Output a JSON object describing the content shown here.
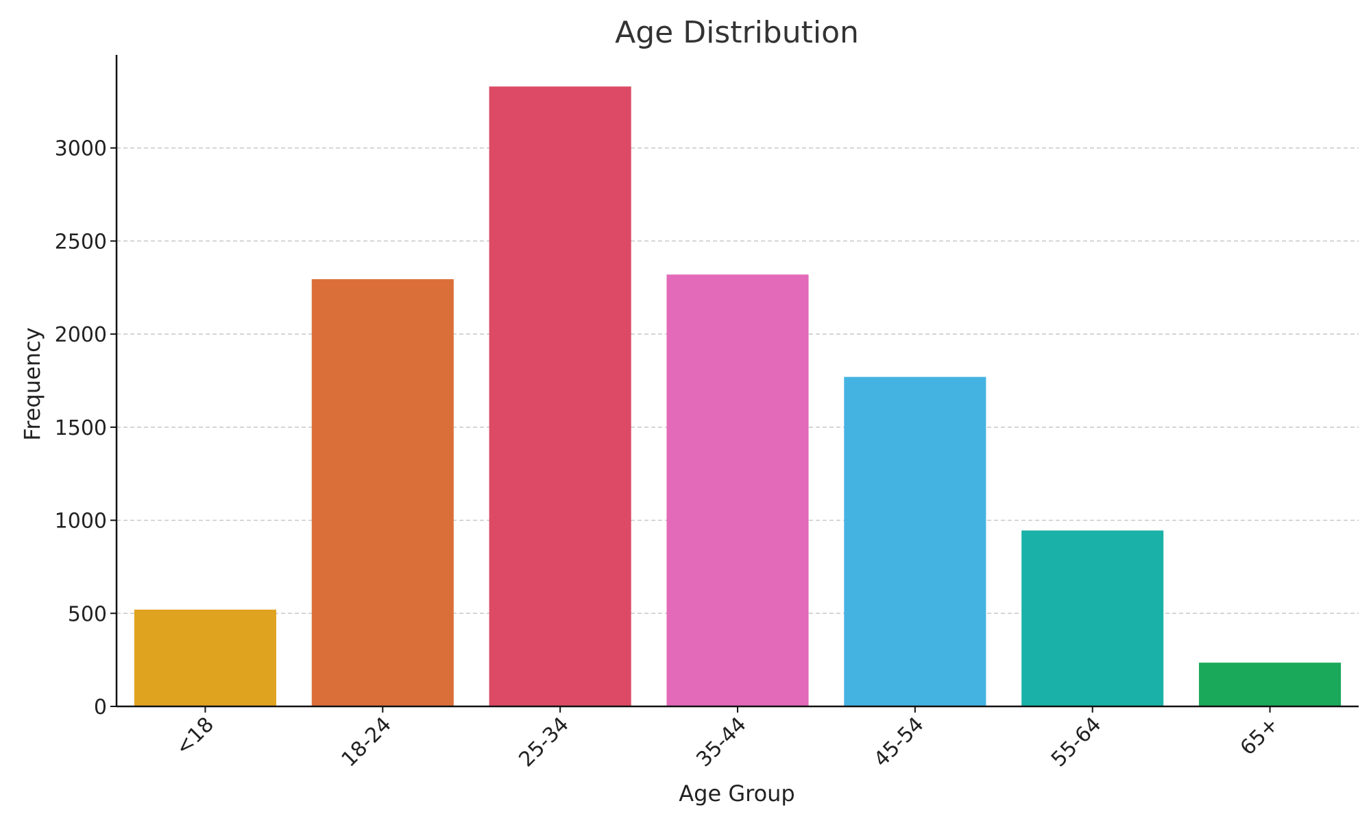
{
  "chart_data": {
    "type": "bar",
    "title": "Age Distribution",
    "xlabel": "Age Group",
    "ylabel": "Frequency",
    "categories": [
      "<18",
      "18-24",
      "25-34",
      "35-44",
      "45-54",
      "55-64",
      "65+"
    ],
    "values": [
      520,
      2295,
      3330,
      2320,
      1770,
      945,
      235
    ],
    "colors": [
      "#E0A320",
      "#DB6F39",
      "#DC4A65",
      "#E36AB9",
      "#45B3E2",
      "#1AB2A8",
      "#1AA85A"
    ],
    "ylim": [
      0,
      3500
    ],
    "yticks": [
      0,
      500,
      1000,
      1500,
      2000,
      2500,
      3000
    ],
    "grid": "y-dashed",
    "legend": "none"
  }
}
